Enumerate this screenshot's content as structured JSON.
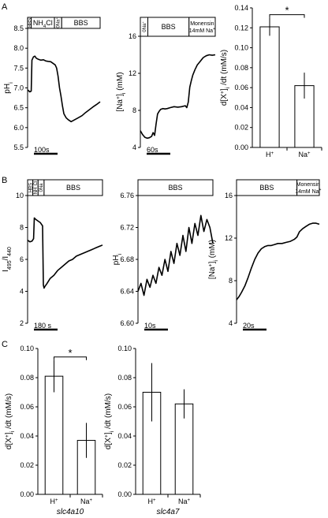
{
  "panel_labels": [
    "A",
    "B",
    "C"
  ],
  "chart_data": [
    {
      "id": "A1",
      "type": "line",
      "ylabel": "pH",
      "ylabel_sub": "i",
      "yticks": [
        "8.5",
        "8.0",
        "7.5",
        "7.0",
        "6.5",
        "6.0",
        "5.5"
      ],
      "ylim": [
        5.5,
        8.5
      ],
      "xlim": [
        0,
        100
      ],
      "scale_bar": "100s",
      "boxes": [
        {
          "label": "HBS",
          "sup": "",
          "rotated": true,
          "from": 0,
          "to": 5
        },
        {
          "label": "NH",
          "sub": "4",
          "tail": "Cl",
          "rotated": false,
          "from": 5,
          "to": 37
        },
        {
          "label": "0Na",
          "sup": "+",
          "rotated": true,
          "from": 37,
          "to": 47
        },
        {
          "label": "BBS",
          "rotated": false,
          "from": 47,
          "to": 100
        }
      ],
      "series": [
        {
          "x": [
            0,
            3,
            5,
            6,
            8,
            10,
            12,
            15,
            18,
            22,
            25,
            28,
            32,
            35,
            38,
            40,
            42,
            44,
            46,
            48,
            50,
            53,
            56,
            60,
            65,
            70,
            75,
            80,
            85,
            90,
            95,
            100
          ],
          "y": [
            6.95,
            6.9,
            6.92,
            7.7,
            7.78,
            7.8,
            7.75,
            7.72,
            7.7,
            7.71,
            7.68,
            7.67,
            7.66,
            7.62,
            7.58,
            7.5,
            7.3,
            7.0,
            6.8,
            6.55,
            6.35,
            6.25,
            6.2,
            6.15,
            6.2,
            6.25,
            6.3,
            6.38,
            6.45,
            6.52,
            6.58,
            6.65
          ]
        }
      ]
    },
    {
      "id": "A2",
      "type": "line",
      "ylabel": "[Na",
      "ylabel_sup": "+",
      "ylabel_tail": "]",
      "ylabel_sub": "i",
      "ylabel_unit": "(mM)",
      "yticks": [
        "16",
        "12",
        "8",
        "4"
      ],
      "ylim": [
        4,
        16
      ],
      "xlim": [
        0,
        100
      ],
      "scale_bar": "60s",
      "boxes": [
        {
          "label": "0Na",
          "sup": "+",
          "rotated": true,
          "from": 0,
          "to": 10
        },
        {
          "label": "BBS",
          "rotated": false,
          "from": 10,
          "to": 65
        },
        {
          "label": "Monensin",
          "line2": "14mM Na",
          "sup": "+",
          "rotated": false,
          "from": 65,
          "to": 100
        }
      ],
      "series": [
        {
          "x": [
            0,
            3,
            6,
            9,
            12,
            15,
            17,
            19,
            21,
            23,
            25,
            27,
            30,
            33,
            36,
            40,
            45,
            50,
            55,
            60,
            62,
            64,
            66,
            68,
            70,
            73,
            76,
            80,
            84,
            88,
            92,
            96,
            100
          ],
          "y": [
            5.8,
            5.4,
            5.1,
            5.0,
            5.05,
            5.2,
            5.6,
            5.3,
            6.5,
            7.6,
            7.9,
            8.1,
            8.2,
            8.15,
            8.2,
            8.3,
            8.4,
            8.35,
            8.4,
            8.5,
            8.3,
            8.9,
            10.5,
            11.2,
            11.8,
            12.4,
            12.9,
            13.3,
            13.7,
            13.9,
            14.0,
            13.95,
            14.0
          ]
        }
      ]
    },
    {
      "id": "A3",
      "type": "bar",
      "ylabel": "d[X",
      "ylabel_sup": "+",
      "ylabel_tail": "]",
      "ylabel_sub": "i",
      "ylabel_unit": "/dt (mM/s)",
      "yticks": [
        "0.14",
        "0.12",
        "0.10",
        "0.08",
        "0.06",
        "0.04",
        "0.02",
        "0.00"
      ],
      "ylim": [
        0,
        0.14
      ],
      "categories": [
        "H",
        "Na"
      ],
      "category_sups": [
        "+",
        "+"
      ],
      "values": [
        0.121,
        0.062
      ],
      "errors": [
        0.009,
        0.013
      ],
      "significance": "*"
    },
    {
      "id": "B1",
      "type": "line",
      "ylabel": "I",
      "ylabel_sub": "495",
      "ylabel_tail": "/I",
      "ylabel_sub2": "440",
      "yticks": [
        "10",
        "8",
        "6",
        "4",
        "2"
      ],
      "ylim": [
        2,
        10
      ],
      "xlim": [
        0,
        100
      ],
      "scale_bar": "180 s",
      "boxes": [
        {
          "label": "HBS",
          "rotated": true,
          "from": 0,
          "to": 7
        },
        {
          "label": "NH",
          "sub": "4",
          "tail": "Cl",
          "rotated": true,
          "from": 7,
          "to": 14
        },
        {
          "label": "0Na",
          "rotated": true,
          "from": 14,
          "to": 22
        },
        {
          "label": "BBS",
          "rotated": false,
          "from": 22,
          "to": 100
        }
      ],
      "series": [
        {
          "x": [
            0,
            3,
            6,
            8,
            9,
            11,
            14,
            17,
            20,
            21,
            22,
            23,
            26,
            30,
            35,
            40,
            45,
            50,
            55,
            60,
            65,
            70,
            75,
            80,
            85,
            90,
            95,
            100
          ],
          "y": [
            7.2,
            7.1,
            7.15,
            7.3,
            8.6,
            8.5,
            8.4,
            8.3,
            8.1,
            4.4,
            4.2,
            4.3,
            4.5,
            4.8,
            5.0,
            5.3,
            5.5,
            5.7,
            5.9,
            6.0,
            6.2,
            6.3,
            6.4,
            6.5,
            6.6,
            6.7,
            6.8,
            6.9
          ]
        }
      ]
    },
    {
      "id": "B2",
      "type": "line",
      "ylabel": "pH",
      "ylabel_sub": "i",
      "yticks": [
        "6.76",
        "6.72",
        "6.68",
        "6.64",
        "6.60"
      ],
      "ylim": [
        6.6,
        6.76
      ],
      "xlim": [
        0,
        100
      ],
      "scale_bar": "10s",
      "boxes": [
        {
          "label": "BBS",
          "rotated": false,
          "from": 0,
          "to": 100
        }
      ],
      "series": [
        {
          "x": [
            0,
            4,
            8,
            12,
            16,
            20,
            24,
            28,
            32,
            36,
            40,
            44,
            48,
            52,
            56,
            60,
            64,
            68,
            72,
            76,
            80,
            84,
            88,
            92,
            96,
            100
          ],
          "y": [
            6.64,
            6.65,
            6.635,
            6.655,
            6.645,
            6.66,
            6.65,
            6.67,
            6.66,
            6.68,
            6.665,
            6.69,
            6.675,
            6.7,
            6.685,
            6.71,
            6.69,
            6.72,
            6.7,
            6.725,
            6.71,
            6.735,
            6.715,
            6.73,
            6.72,
            6.7
          ]
        }
      ]
    },
    {
      "id": "B3",
      "type": "line",
      "ylabel": "[Na",
      "ylabel_sup": "+",
      "ylabel_tail": "]",
      "ylabel_sub": "i",
      "ylabel_unit": "(mM)",
      "yticks": [
        "16",
        "12",
        "8",
        "4"
      ],
      "ylim": [
        4,
        16
      ],
      "xlim": [
        0,
        100
      ],
      "scale_bar": "20s",
      "boxes": [
        {
          "label": "BBS",
          "rotated": false,
          "from": 0,
          "to": 73
        },
        {
          "label": "Monensin",
          "line2": "14mM Na",
          "sup": "+",
          "rotated": false,
          "from": 73,
          "to": 100
        }
      ],
      "series": [
        {
          "x": [
            0,
            3,
            6,
            10,
            14,
            18,
            22,
            26,
            30,
            34,
            38,
            42,
            46,
            50,
            55,
            60,
            65,
            70,
            73,
            76,
            80,
            84,
            88,
            92,
            96,
            100
          ],
          "y": [
            6.2,
            6.5,
            6.9,
            7.5,
            8.3,
            9.2,
            10.0,
            10.6,
            11.0,
            11.2,
            11.3,
            11.3,
            11.4,
            11.5,
            11.5,
            11.6,
            11.7,
            11.9,
            12.1,
            12.6,
            12.9,
            13.1,
            13.3,
            13.4,
            13.4,
            13.3
          ]
        }
      ]
    },
    {
      "id": "C1",
      "type": "bar",
      "ylabel": "d[X",
      "ylabel_sup": "+",
      "ylabel_tail": "]",
      "ylabel_sub": "i",
      "ylabel_unit": "/dt (mM/s)",
      "yticks": [
        "0.10",
        "0.08",
        "0.06",
        "0.04",
        "0.02",
        "0.00"
      ],
      "ylim": [
        0,
        0.1
      ],
      "categories": [
        "H",
        "Na"
      ],
      "category_sups": [
        "+",
        "+"
      ],
      "values": [
        0.081,
        0.037
      ],
      "errors": [
        0.011,
        0.012
      ],
      "significance": "*",
      "xlabel": "slc4a10"
    },
    {
      "id": "C2",
      "type": "bar",
      "ylabel": "d[X",
      "ylabel_sup": "+",
      "ylabel_tail": "]",
      "ylabel_sub": "i",
      "ylabel_unit": "/dt (mM/s)",
      "yticks": [
        "0.10",
        "0.08",
        "0.06",
        "0.04",
        "0.02",
        "0.00"
      ],
      "ylim": [
        0,
        0.1
      ],
      "categories": [
        "H",
        "Na"
      ],
      "category_sups": [
        "+",
        "+"
      ],
      "values": [
        0.07,
        0.062
      ],
      "errors": [
        0.02,
        0.01
      ],
      "significance": "",
      "xlabel": "slc4a7"
    }
  ]
}
